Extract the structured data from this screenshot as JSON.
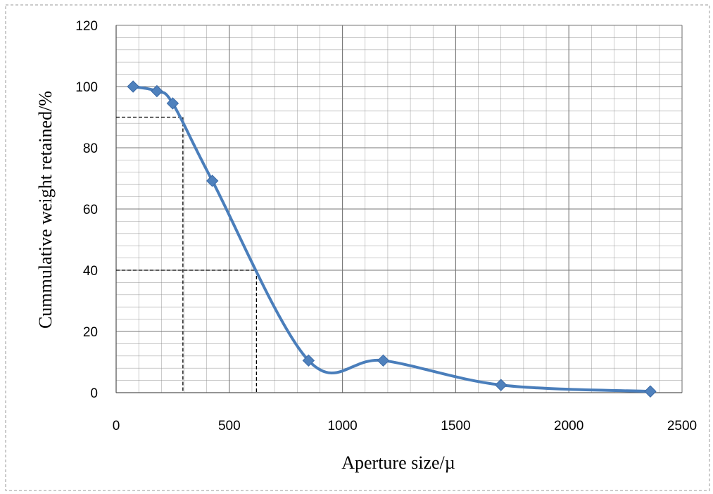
{
  "chart_data": {
    "type": "line",
    "title": "",
    "xlabel": "Aperture size/µ",
    "ylabel": "Cummulative weight retained/%",
    "xlim": [
      0,
      2500
    ],
    "ylim": [
      0,
      120
    ],
    "x_ticks": [
      0,
      500,
      1000,
      1500,
      2000,
      2500
    ],
    "y_ticks": [
      0,
      20,
      40,
      60,
      80,
      100,
      120
    ],
    "x_minor_step": 100,
    "y_minor_step": 4,
    "grid": true,
    "legend": "none",
    "smoothed": true,
    "series": [
      {
        "x": [
          75,
          180,
          250,
          425,
          850,
          1180,
          1700,
          2360
        ],
        "y": [
          100,
          98.5,
          94.5,
          69.2,
          10.5,
          10.5,
          2.5,
          0.4
        ],
        "color": "#4a7ebb",
        "marker": "diamond"
      }
    ],
    "reference_lines": [
      {
        "y": 90,
        "x": 295
      },
      {
        "y": 40,
        "x": 620
      }
    ],
    "colors": {
      "line": "#4a7ebb",
      "marker": "#4f81bd",
      "grid": "#888888",
      "reference": "#000000",
      "border": "#aaaaaa"
    }
  }
}
